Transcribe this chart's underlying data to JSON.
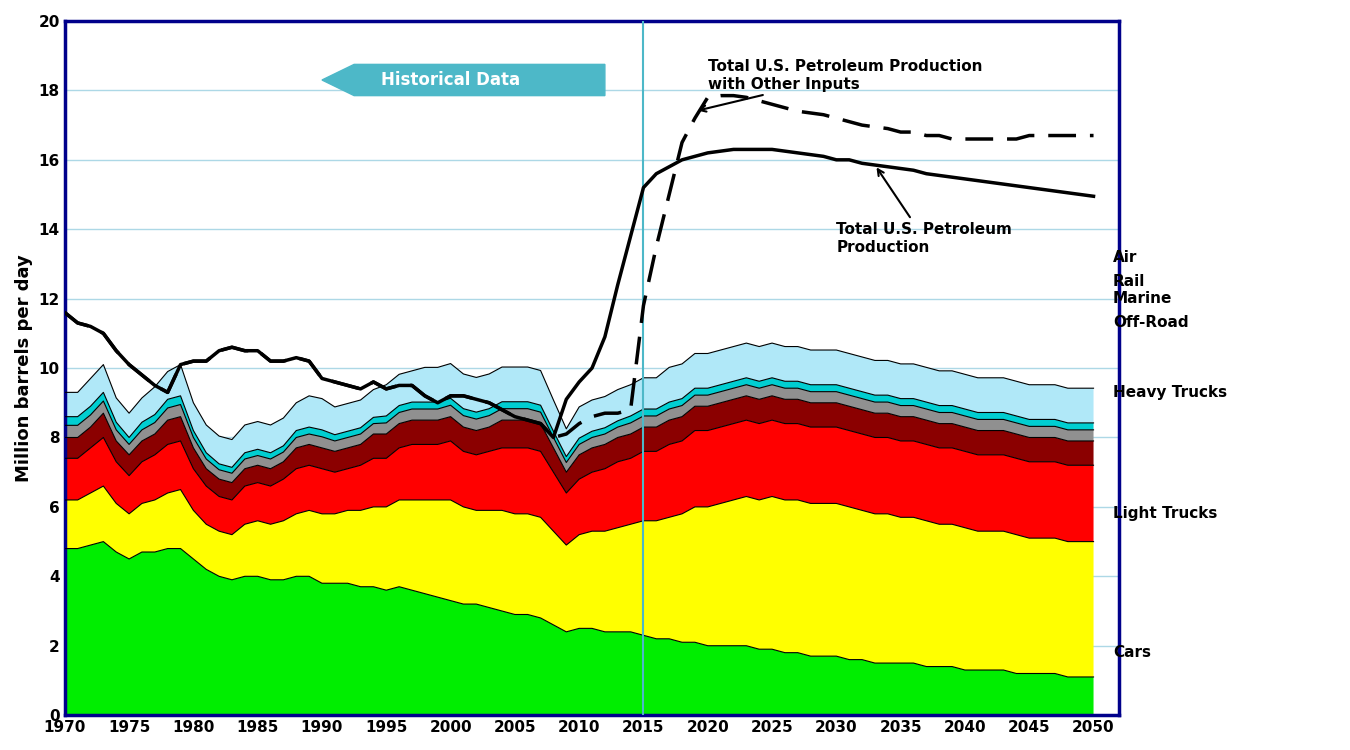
{
  "years_hist": [
    1970,
    1971,
    1972,
    1973,
    1974,
    1975,
    1976,
    1977,
    1978,
    1979,
    1980,
    1981,
    1982,
    1983,
    1984,
    1985,
    1986,
    1987,
    1988,
    1989,
    1990,
    1991,
    1992,
    1993,
    1994,
    1995,
    1996,
    1997,
    1998,
    1999,
    2000,
    2001,
    2002,
    2003,
    2004,
    2005,
    2006,
    2007,
    2008,
    2009,
    2010,
    2011,
    2012,
    2013,
    2014,
    2015
  ],
  "years_proj": [
    2015,
    2016,
    2017,
    2018,
    2019,
    2020,
    2021,
    2022,
    2023,
    2024,
    2025,
    2026,
    2027,
    2028,
    2029,
    2030,
    2031,
    2032,
    2033,
    2034,
    2035,
    2036,
    2037,
    2038,
    2039,
    2040,
    2041,
    2042,
    2043,
    2044,
    2045,
    2046,
    2047,
    2048,
    2049,
    2050
  ],
  "cars_hist": [
    4.8,
    4.8,
    4.9,
    5.0,
    4.7,
    4.5,
    4.7,
    4.7,
    4.8,
    4.8,
    4.5,
    4.2,
    4.0,
    3.9,
    4.0,
    4.0,
    3.9,
    3.9,
    4.0,
    4.0,
    3.8,
    3.8,
    3.8,
    3.7,
    3.7,
    3.6,
    3.7,
    3.6,
    3.5,
    3.4,
    3.3,
    3.2,
    3.2,
    3.1,
    3.0,
    2.9,
    2.9,
    2.8,
    2.6,
    2.4,
    2.5,
    2.5,
    2.4,
    2.4,
    2.4,
    2.3
  ],
  "cars_proj": [
    2.3,
    2.2,
    2.2,
    2.1,
    2.1,
    2.0,
    2.0,
    2.0,
    2.0,
    1.9,
    1.9,
    1.8,
    1.8,
    1.7,
    1.7,
    1.7,
    1.6,
    1.6,
    1.5,
    1.5,
    1.5,
    1.5,
    1.4,
    1.4,
    1.4,
    1.3,
    1.3,
    1.3,
    1.3,
    1.2,
    1.2,
    1.2,
    1.2,
    1.1,
    1.1,
    1.1
  ],
  "light_trucks_hist": [
    1.4,
    1.4,
    1.5,
    1.6,
    1.4,
    1.3,
    1.4,
    1.5,
    1.6,
    1.7,
    1.4,
    1.3,
    1.3,
    1.3,
    1.5,
    1.6,
    1.6,
    1.7,
    1.8,
    1.9,
    2.0,
    2.0,
    2.1,
    2.2,
    2.3,
    2.4,
    2.5,
    2.6,
    2.7,
    2.8,
    2.9,
    2.8,
    2.7,
    2.8,
    2.9,
    2.9,
    2.9,
    2.9,
    2.7,
    2.5,
    2.7,
    2.8,
    2.9,
    3.0,
    3.1,
    3.3
  ],
  "light_trucks_proj": [
    3.3,
    3.4,
    3.5,
    3.7,
    3.9,
    4.0,
    4.1,
    4.2,
    4.3,
    4.3,
    4.4,
    4.4,
    4.4,
    4.4,
    4.4,
    4.4,
    4.4,
    4.3,
    4.3,
    4.3,
    4.2,
    4.2,
    4.2,
    4.1,
    4.1,
    4.1,
    4.0,
    4.0,
    4.0,
    4.0,
    3.9,
    3.9,
    3.9,
    3.9,
    3.9,
    3.9
  ],
  "heavy_trucks_hist": [
    1.2,
    1.2,
    1.3,
    1.4,
    1.2,
    1.1,
    1.2,
    1.3,
    1.4,
    1.4,
    1.2,
    1.1,
    1.0,
    1.0,
    1.1,
    1.1,
    1.1,
    1.2,
    1.3,
    1.3,
    1.3,
    1.2,
    1.2,
    1.3,
    1.4,
    1.4,
    1.5,
    1.6,
    1.6,
    1.6,
    1.7,
    1.6,
    1.6,
    1.7,
    1.8,
    1.9,
    1.9,
    1.9,
    1.7,
    1.5,
    1.6,
    1.7,
    1.8,
    1.9,
    1.9,
    2.0
  ],
  "heavy_trucks_proj": [
    2.0,
    2.0,
    2.1,
    2.1,
    2.2,
    2.2,
    2.2,
    2.2,
    2.2,
    2.2,
    2.2,
    2.2,
    2.2,
    2.2,
    2.2,
    2.2,
    2.2,
    2.2,
    2.2,
    2.2,
    2.2,
    2.2,
    2.2,
    2.2,
    2.2,
    2.2,
    2.2,
    2.2,
    2.2,
    2.2,
    2.2,
    2.2,
    2.2,
    2.2,
    2.2,
    2.2
  ],
  "offroad_hist": [
    0.6,
    0.6,
    0.6,
    0.7,
    0.6,
    0.6,
    0.6,
    0.6,
    0.7,
    0.7,
    0.6,
    0.5,
    0.5,
    0.5,
    0.5,
    0.5,
    0.5,
    0.5,
    0.6,
    0.6,
    0.6,
    0.6,
    0.6,
    0.6,
    0.7,
    0.7,
    0.7,
    0.7,
    0.7,
    0.7,
    0.7,
    0.7,
    0.7,
    0.7,
    0.8,
    0.8,
    0.8,
    0.8,
    0.7,
    0.6,
    0.7,
    0.7,
    0.7,
    0.7,
    0.7,
    0.7
  ],
  "offroad_proj": [
    0.7,
    0.7,
    0.7,
    0.7,
    0.7,
    0.7,
    0.7,
    0.7,
    0.7,
    0.7,
    0.7,
    0.7,
    0.7,
    0.7,
    0.7,
    0.7,
    0.7,
    0.7,
    0.7,
    0.7,
    0.7,
    0.7,
    0.7,
    0.7,
    0.7,
    0.7,
    0.7,
    0.7,
    0.7,
    0.7,
    0.7,
    0.7,
    0.7,
    0.7,
    0.7,
    0.7
  ],
  "marine_hist": [
    0.35,
    0.35,
    0.35,
    0.35,
    0.32,
    0.3,
    0.32,
    0.33,
    0.35,
    0.35,
    0.3,
    0.28,
    0.27,
    0.27,
    0.28,
    0.28,
    0.28,
    0.28,
    0.3,
    0.3,
    0.32,
    0.3,
    0.3,
    0.3,
    0.3,
    0.32,
    0.32,
    0.32,
    0.32,
    0.32,
    0.33,
    0.33,
    0.33,
    0.33,
    0.33,
    0.33,
    0.33,
    0.33,
    0.3,
    0.28,
    0.3,
    0.3,
    0.3,
    0.3,
    0.32,
    0.32
  ],
  "marine_proj": [
    0.32,
    0.32,
    0.32,
    0.32,
    0.32,
    0.32,
    0.32,
    0.32,
    0.32,
    0.32,
    0.32,
    0.32,
    0.32,
    0.32,
    0.32,
    0.32,
    0.32,
    0.32,
    0.32,
    0.32,
    0.32,
    0.32,
    0.32,
    0.32,
    0.32,
    0.32,
    0.32,
    0.32,
    0.32,
    0.32,
    0.32,
    0.32,
    0.32,
    0.32,
    0.32,
    0.32
  ],
  "rail_hist": [
    0.25,
    0.25,
    0.25,
    0.25,
    0.22,
    0.2,
    0.22,
    0.23,
    0.25,
    0.25,
    0.2,
    0.18,
    0.17,
    0.17,
    0.18,
    0.18,
    0.18,
    0.18,
    0.2,
    0.2,
    0.2,
    0.18,
    0.18,
    0.18,
    0.18,
    0.2,
    0.2,
    0.2,
    0.2,
    0.2,
    0.2,
    0.2,
    0.2,
    0.2,
    0.2,
    0.2,
    0.2,
    0.2,
    0.18,
    0.17,
    0.18,
    0.18,
    0.18,
    0.18,
    0.2,
    0.2
  ],
  "rail_proj": [
    0.2,
    0.2,
    0.2,
    0.2,
    0.2,
    0.2,
    0.2,
    0.2,
    0.2,
    0.2,
    0.2,
    0.2,
    0.2,
    0.2,
    0.2,
    0.2,
    0.2,
    0.2,
    0.2,
    0.2,
    0.2,
    0.2,
    0.2,
    0.2,
    0.2,
    0.2,
    0.2,
    0.2,
    0.2,
    0.2,
    0.2,
    0.2,
    0.2,
    0.2,
    0.2,
    0.2
  ],
  "air_hist": [
    0.7,
    0.7,
    0.8,
    0.8,
    0.7,
    0.7,
    0.7,
    0.8,
    0.8,
    0.9,
    0.8,
    0.8,
    0.8,
    0.8,
    0.8,
    0.8,
    0.8,
    0.8,
    0.8,
    0.9,
    0.9,
    0.8,
    0.8,
    0.8,
    0.8,
    0.9,
    0.9,
    0.9,
    1.0,
    1.0,
    1.0,
    1.0,
    1.0,
    1.0,
    1.0,
    1.0,
    1.0,
    1.0,
    0.9,
    0.8,
    0.9,
    0.9,
    0.9,
    0.9,
    0.9,
    0.9
  ],
  "air_proj": [
    0.9,
    0.9,
    1.0,
    1.0,
    1.0,
    1.0,
    1.0,
    1.0,
    1.0,
    1.0,
    1.0,
    1.0,
    1.0,
    1.0,
    1.0,
    1.0,
    1.0,
    1.0,
    1.0,
    1.0,
    1.0,
    1.0,
    1.0,
    1.0,
    1.0,
    1.0,
    1.0,
    1.0,
    1.0,
    1.0,
    1.0,
    1.0,
    1.0,
    1.0,
    1.0,
    1.0
  ],
  "petro_prod_hist": [
    11.6,
    11.3,
    11.2,
    11.0,
    10.5,
    10.1,
    9.8,
    9.5,
    9.3,
    10.1,
    10.2,
    10.2,
    10.5,
    10.6,
    10.5,
    10.5,
    10.2,
    10.2,
    10.3,
    10.2,
    9.7,
    9.6,
    9.5,
    9.4,
    9.6,
    9.4,
    9.5,
    9.5,
    9.2,
    9.0,
    9.2,
    9.2,
    9.1,
    9.0,
    8.8,
    8.6,
    8.5,
    8.4,
    8.0,
    9.1,
    9.6,
    10.0,
    10.9,
    12.4,
    13.8,
    15.2
  ],
  "petro_prod_proj": [
    15.2,
    15.6,
    15.8,
    16.0,
    16.1,
    16.2,
    16.25,
    16.3,
    16.3,
    16.3,
    16.3,
    16.25,
    16.2,
    16.15,
    16.1,
    16.0,
    16.0,
    15.9,
    15.85,
    15.8,
    15.75,
    15.7,
    15.6,
    15.55,
    15.5,
    15.45,
    15.4,
    15.35,
    15.3,
    15.25,
    15.2,
    15.15,
    15.1,
    15.05,
    15.0,
    14.95
  ],
  "petro_other_hist": [
    11.6,
    11.3,
    11.2,
    11.0,
    10.5,
    10.1,
    9.8,
    9.5,
    9.3,
    10.1,
    10.2,
    10.2,
    10.5,
    10.6,
    10.5,
    10.5,
    10.2,
    10.2,
    10.3,
    10.2,
    9.7,
    9.6,
    9.5,
    9.4,
    9.6,
    9.4,
    9.5,
    9.5,
    9.2,
    9.0,
    9.2,
    9.2,
    9.1,
    9.0,
    8.8,
    8.6,
    8.5,
    8.4,
    8.0,
    8.1,
    8.4,
    8.6,
    8.7,
    8.7,
    8.8,
    11.8
  ],
  "petro_other_proj": [
    11.8,
    13.5,
    15.0,
    16.5,
    17.2,
    17.8,
    17.85,
    17.85,
    17.8,
    17.7,
    17.6,
    17.5,
    17.4,
    17.35,
    17.3,
    17.2,
    17.1,
    17.0,
    16.95,
    16.9,
    16.8,
    16.8,
    16.7,
    16.7,
    16.6,
    16.6,
    16.6,
    16.6,
    16.6,
    16.6,
    16.7,
    16.7,
    16.7,
    16.7,
    16.7,
    16.7
  ],
  "colors": {
    "cars": "#00ee00",
    "light_trucks": "#ffff00",
    "heavy_trucks": "#ff0000",
    "offroad": "#8b0000",
    "marine": "#909090",
    "rail": "#00ced1",
    "air": "#b0e8f8"
  },
  "ylabel": "Million barrels per day",
  "ylim": [
    0,
    20
  ],
  "xlim": [
    1970,
    2050
  ],
  "hist_end_year": 2015,
  "arrow_text": "Historical Data",
  "annotation_other": "Total U.S. Petroleum Production\nwith Other Inputs",
  "annotation_prod": "Total U.S. Petroleum\nProduction",
  "label_cars": "Cars",
  "label_light_trucks": "Light Trucks",
  "label_heavy_trucks": "Heavy Trucks",
  "label_offroad": "Off-Road",
  "label_marine": "Marine",
  "label_rail": "Rail",
  "label_air": "Air"
}
